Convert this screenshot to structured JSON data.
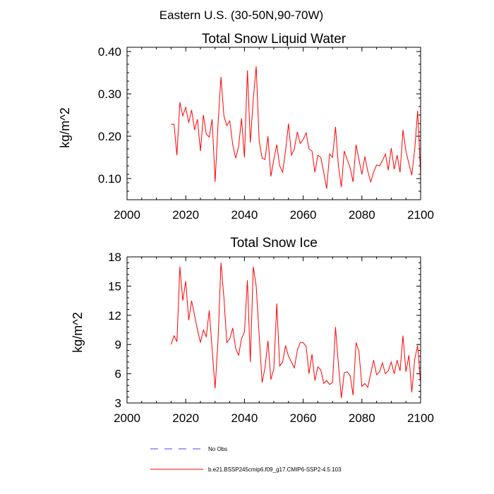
{
  "figure_title": "Eastern U.S. (30-50N,90-70W)",
  "chart_data": [
    {
      "type": "line",
      "title": "Total Snow Liquid Water",
      "xlabel": "",
      "ylabel": "kg/m^2",
      "xlim": [
        2000,
        2100
      ],
      "ylim": [
        0.05,
        0.41
      ],
      "xticks": [
        2000,
        2020,
        2040,
        2060,
        2080,
        2100
      ],
      "xtick_labels": [
        "2000",
        "2020",
        "2040",
        "2060",
        "2080",
        "2100"
      ],
      "yticks": [
        0.1,
        0.2,
        0.3,
        0.4
      ],
      "ytick_labels": [
        "0.10",
        "0.20",
        "0.30",
        "0.40"
      ],
      "x": [
        2015,
        2016,
        2017,
        2018,
        2019,
        2020,
        2021,
        2022,
        2023,
        2024,
        2025,
        2026,
        2027,
        2028,
        2029,
        2030,
        2031,
        2032,
        2033,
        2034,
        2035,
        2036,
        2037,
        2038,
        2039,
        2040,
        2041,
        2042,
        2043,
        2044,
        2045,
        2046,
        2047,
        2048,
        2049,
        2050,
        2051,
        2052,
        2053,
        2054,
        2055,
        2056,
        2057,
        2058,
        2059,
        2060,
        2061,
        2062,
        2063,
        2064,
        2065,
        2066,
        2067,
        2068,
        2069,
        2070,
        2071,
        2072,
        2073,
        2074,
        2075,
        2076,
        2077,
        2078,
        2079,
        2080,
        2081,
        2082,
        2083,
        2084,
        2085,
        2086,
        2087,
        2088,
        2089,
        2090,
        2091,
        2092,
        2093,
        2094,
        2095,
        2096,
        2097,
        2098,
        2099,
        2100
      ],
      "series": [
        {
          "name": "b.e21.BSSP245cmip6.f09_g17.CMIP6-SSP2-4.5.103",
          "color": "#ff0000",
          "values": [
            0.228,
            0.228,
            0.155,
            0.28,
            0.248,
            0.268,
            0.232,
            0.262,
            0.215,
            0.24,
            0.165,
            0.25,
            0.205,
            0.198,
            0.24,
            0.092,
            0.23,
            0.34,
            0.248,
            0.225,
            0.236,
            0.18,
            0.148,
            0.175,
            0.242,
            0.15,
            0.355,
            0.185,
            0.288,
            0.365,
            0.19,
            0.148,
            0.145,
            0.2,
            0.105,
            0.145,
            0.18,
            0.13,
            0.115,
            0.165,
            0.23,
            0.155,
            0.17,
            0.21,
            0.183,
            0.192,
            0.208,
            0.17,
            0.165,
            0.115,
            0.155,
            0.15,
            0.115,
            0.076,
            0.158,
            0.15,
            0.222,
            0.13,
            0.08,
            0.165,
            0.145,
            0.125,
            0.092,
            0.18,
            0.145,
            0.11,
            0.152,
            0.118,
            0.092,
            0.115,
            0.132,
            0.13,
            0.142,
            0.158,
            0.12,
            0.172,
            0.122,
            0.155,
            0.115,
            0.215,
            0.165,
            0.135,
            0.108,
            0.17,
            0.26,
            0.11
          ]
        }
      ]
    },
    {
      "type": "line",
      "title": "Total Snow Ice",
      "xlabel": "",
      "ylabel": "kg/m^2",
      "xlim": [
        2000,
        2100
      ],
      "ylim": [
        3,
        18
      ],
      "xticks": [
        2000,
        2020,
        2040,
        2060,
        2080,
        2100
      ],
      "xtick_labels": [
        "2000",
        "2020",
        "2040",
        "2060",
        "2080",
        "2100"
      ],
      "yticks": [
        3,
        6,
        9,
        12,
        15,
        18
      ],
      "ytick_labels": [
        "3",
        "6",
        "9",
        "12",
        "15",
        "18"
      ],
      "x": [
        2015,
        2016,
        2017,
        2018,
        2019,
        2020,
        2021,
        2022,
        2023,
        2024,
        2025,
        2026,
        2027,
        2028,
        2029,
        2030,
        2031,
        2032,
        2033,
        2034,
        2035,
        2036,
        2037,
        2038,
        2039,
        2040,
        2041,
        2042,
        2043,
        2044,
        2045,
        2046,
        2047,
        2048,
        2049,
        2050,
        2051,
        2052,
        2053,
        2054,
        2055,
        2056,
        2057,
        2058,
        2059,
        2060,
        2061,
        2062,
        2063,
        2064,
        2065,
        2066,
        2067,
        2068,
        2069,
        2070,
        2071,
        2072,
        2073,
        2074,
        2075,
        2076,
        2077,
        2078,
        2079,
        2080,
        2081,
        2082,
        2083,
        2084,
        2085,
        2086,
        2087,
        2088,
        2089,
        2090,
        2091,
        2092,
        2093,
        2094,
        2095,
        2096,
        2097,
        2098,
        2099,
        2100
      ],
      "series": [
        {
          "name": "b.e21.BSSP245cmip6.f09_g17.CMIP6-SSP2-4.5.103",
          "color": "#ff0000",
          "values": [
            9.0,
            9.9,
            9.3,
            17.0,
            13.5,
            15.5,
            11.5,
            13.5,
            12.0,
            10.5,
            9.2,
            10.5,
            9.8,
            12.5,
            8.5,
            4.5,
            9.5,
            17.4,
            13.8,
            9.2,
            9.6,
            10.7,
            8.6,
            7.9,
            9.6,
            10.3,
            15.6,
            7.2,
            17.0,
            15.0,
            10.0,
            5.1,
            6.6,
            9.4,
            5.4,
            6.5,
            13.2,
            6.8,
            7.2,
            8.9,
            7.8,
            7.2,
            6.6,
            8.4,
            9.2,
            9.2,
            8.8,
            6.0,
            8.0,
            5.3,
            6.7,
            6.4,
            5.0,
            5.3,
            4.9,
            5.1,
            10.8,
            7.0,
            3.5,
            6.1,
            6.2,
            5.8,
            3.8,
            9.2,
            8.3,
            4.7,
            5.0,
            4.6,
            6.0,
            7.4,
            5.9,
            6.2,
            7.1,
            6.0,
            6.3,
            7.2,
            6.0,
            7.4,
            6.3,
            9.9,
            6.2,
            7.9,
            4.1,
            7.5,
            8.9,
            5.0
          ]
        }
      ]
    }
  ],
  "legend": [
    {
      "label": "No Obs",
      "color": "#4444ff",
      "style": "dashed"
    },
    {
      "label": "b.e21.BSSP245cmip6.f09_g17.CMIP6-SSP2-4.5.103",
      "color": "#ff0000",
      "style": "solid"
    }
  ]
}
